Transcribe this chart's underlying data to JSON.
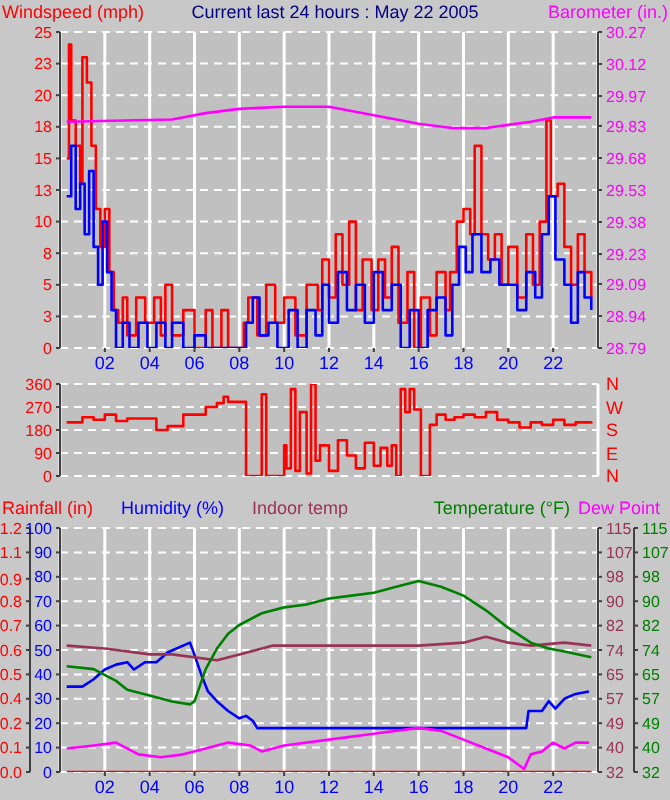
{
  "chart_data": [
    {
      "type": "line",
      "title": "Current last 24 hours : May 22 2005",
      "ylabel": "Windspeed (mph)",
      "y2label": "Barometer (in.)",
      "grid": true,
      "xlim": [
        0,
        24
      ],
      "xticks": [
        {
          "value": 2,
          "label": "02"
        },
        {
          "value": 4,
          "label": "04"
        },
        {
          "value": 6,
          "label": "06"
        },
        {
          "value": 8,
          "label": "08"
        },
        10,
        12,
        14,
        16,
        18,
        20,
        22
      ],
      "ylim": [
        0,
        25
      ],
      "yticks": [
        0,
        {
          "value": 2.5,
          "label": "3"
        },
        5,
        {
          "value": 7.5,
          "label": "8"
        },
        10,
        {
          "value": 12.5,
          "label": "13"
        },
        15,
        {
          "value": 17.5,
          "label": "18"
        },
        20,
        {
          "value": 22.5,
          "label": "23"
        },
        25
      ],
      "y2lim": [
        28.79,
        30.27
      ],
      "y2ticks": [
        28.79,
        28.94,
        29.09,
        29.23,
        29.38,
        29.53,
        29.68,
        29.83,
        29.97,
        30.12,
        30.27
      ],
      "series": [
        {
          "type": "step",
          "color": "#ff0000",
          "x": [
            0.3,
            0.4,
            0.5,
            0.7,
            0.9,
            1.0,
            1.2,
            1.4,
            1.6,
            1.8,
            2.0,
            2.2,
            2.4,
            2.6,
            2.8,
            3.0,
            3.4,
            3.8,
            4.2,
            4.5,
            4.7,
            5.0,
            5.5,
            6.0,
            6.5,
            6.8,
            7.2,
            7.5,
            8.0,
            8.2,
            8.4,
            8.8,
            9.2,
            9.6,
            10.0,
            10.5,
            11.0,
            11.5,
            11.7,
            12.0,
            12.3,
            12.6,
            12.9,
            13.2,
            13.5,
            13.9,
            14.2,
            14.5,
            14.8,
            15.1,
            15.5,
            15.8,
            16.1,
            16.5,
            16.8,
            17.2,
            17.4,
            17.7,
            18.0,
            18.3,
            18.5,
            18.8,
            19.1,
            19.4,
            19.7,
            20.0,
            20.4,
            20.8,
            21.1,
            21.4,
            21.7,
            21.9,
            22.2,
            22.5,
            22.8,
            23.1,
            23.4,
            23.7
          ],
          "values": [
            15,
            24,
            18,
            16,
            13,
            23,
            21,
            16,
            11,
            8,
            11,
            6,
            3,
            2,
            4,
            1,
            4,
            2,
            4,
            1,
            5,
            1,
            3,
            0,
            3,
            0,
            3,
            0,
            0,
            2,
            4,
            1,
            5,
            2,
            4,
            1,
            5,
            3,
            7,
            4,
            9,
            5,
            10,
            3,
            7,
            3,
            7,
            4,
            8,
            2,
            6,
            0,
            4,
            1,
            6,
            3,
            6,
            10,
            11,
            9,
            16,
            9,
            7,
            9,
            5,
            8,
            4,
            9,
            5,
            10,
            18,
            12,
            13,
            8,
            5,
            9,
            6,
            4
          ]
        },
        {
          "type": "step",
          "color": "#0000ff",
          "x": [
            0.3,
            0.5,
            0.7,
            0.9,
            1.1,
            1.3,
            1.5,
            1.7,
            1.9,
            2.1,
            2.3,
            2.5,
            2.8,
            3.1,
            3.5,
            3.9,
            4.3,
            4.7,
            5.0,
            5.5,
            6.0,
            6.5,
            8.0,
            8.3,
            8.6,
            8.9,
            9.3,
            9.7,
            10.2,
            10.6,
            11.0,
            11.4,
            11.7,
            12.0,
            12.4,
            12.8,
            13.2,
            13.6,
            14.0,
            14.4,
            14.8,
            15.2,
            15.6,
            16.0,
            16.4,
            16.8,
            17.2,
            17.5,
            17.8,
            18.1,
            18.4,
            18.8,
            19.2,
            19.6,
            20.0,
            20.4,
            20.8,
            21.2,
            21.5,
            21.8,
            22.1,
            22.5,
            22.8,
            23.1,
            23.4,
            23.7
          ],
          "values": [
            12,
            16,
            11,
            13,
            9,
            14,
            8,
            5,
            10,
            6,
            3,
            0,
            2,
            0,
            2,
            0,
            2,
            0,
            2,
            0,
            1,
            0,
            0,
            2,
            4,
            1,
            2,
            0,
            3,
            0,
            3,
            1,
            5,
            2,
            6,
            3,
            5,
            2,
            6,
            3,
            5,
            0,
            3,
            0,
            3,
            4,
            1,
            5,
            8,
            6,
            9,
            6,
            7,
            5,
            5,
            3,
            6,
            4,
            9,
            12,
            7,
            5,
            2,
            6,
            4,
            3
          ]
        },
        {
          "color": "#ff00ff",
          "axis": "y2",
          "x": [
            0.3,
            5,
            6.5,
            8,
            10,
            12,
            14,
            16,
            17.5,
            19,
            21,
            22,
            23.7
          ],
          "values": [
            29.85,
            29.86,
            29.89,
            29.91,
            29.92,
            29.92,
            29.88,
            29.84,
            29.82,
            29.82,
            29.85,
            29.87,
            29.87
          ]
        }
      ]
    },
    {
      "type": "step",
      "grid": true,
      "tick_labels": "y",
      "annotations": [
        "N",
        "E",
        "S",
        "W",
        "N"
      ],
      "xlim": [
        0,
        24
      ],
      "xticks": [
        2,
        4,
        6,
        8,
        10,
        12,
        14,
        16,
        18,
        20,
        22
      ],
      "ylim": [
        0,
        360
      ],
      "yticks": [
        0,
        90,
        180,
        270,
        360
      ],
      "series": [
        {
          "color": "#ff0000",
          "x": [
            0.3,
            1,
            1.5,
            2,
            2.5,
            3,
            4,
            4.3,
            4.8,
            5.5,
            6,
            6.5,
            7,
            7.3,
            7.5,
            8.2,
            8.3,
            8.8,
            9.0,
            9.2,
            9.5,
            10.0,
            10.1,
            10.3,
            10.5,
            10.7,
            11.0,
            11.2,
            11.4,
            11.6,
            12.0,
            12.4,
            12.8,
            13.2,
            13.6,
            14.0,
            14.3,
            14.6,
            14.8,
            15.0,
            15.2,
            15.4,
            15.6,
            15.8,
            16.1,
            16.4,
            16.5,
            16.8,
            17.2,
            17.6,
            18,
            18.5,
            19,
            19.5,
            20,
            20.5,
            21,
            21.5,
            22,
            22.5,
            23,
            23.7
          ],
          "values": [
            210,
            230,
            220,
            240,
            215,
            225,
            225,
            180,
            195,
            240,
            240,
            270,
            285,
            310,
            290,
            290,
            0,
            0,
            320,
            0,
            0,
            120,
            30,
            340,
            20,
            250,
            10,
            360,
            60,
            120,
            20,
            140,
            80,
            30,
            130,
            40,
            110,
            40,
            120,
            0,
            340,
            250,
            340,
            260,
            0,
            0,
            200,
            240,
            220,
            230,
            240,
            230,
            250,
            220,
            210,
            190,
            210,
            200,
            220,
            200,
            210,
            205
          ]
        }
      ]
    },
    {
      "type": "line",
      "grid": true,
      "legend": "top",
      "xlim": [
        0,
        24
      ],
      "xticks": [
        {
          "value": 2,
          "label": "02"
        },
        {
          "value": 4,
          "label": "04"
        },
        {
          "value": 6,
          "label": "06"
        },
        {
          "value": 8,
          "label": "08"
        },
        10,
        12,
        14,
        16,
        18,
        20,
        22
      ],
      "ylim": [
        0,
        100
      ],
      "yticks": [
        0,
        10,
        20,
        30,
        40,
        50,
        60,
        70,
        80,
        90,
        100
      ],
      "y3lim": [
        0,
        1.2
      ],
      "y3ticks": [
        {
          "value": 0,
          "label": "0.0"
        },
        {
          "value": 0.12,
          "label": "0.1"
        },
        {
          "value": 0.24,
          "label": "0.2"
        },
        {
          "value": 0.36,
          "label": "0.4"
        },
        {
          "value": 0.48,
          "label": "0.5"
        },
        {
          "value": 0.6,
          "label": "0.6"
        },
        {
          "value": 0.72,
          "label": "0.7"
        },
        {
          "value": 0.84,
          "label": "0.8"
        },
        {
          "value": 0.95,
          "label": "0.9"
        },
        {
          "value": 1.08,
          "label": "1.1"
        },
        {
          "value": 1.2,
          "label": "1.2"
        }
      ],
      "y2lim": [
        32,
        115
      ],
      "y2ticks": [
        {
          "value": 32,
          "label": "32"
        },
        {
          "value": 40.3,
          "label": "40"
        },
        {
          "value": 48.6,
          "label": "49"
        },
        {
          "value": 56.9,
          "label": "57"
        },
        {
          "value": 65.2,
          "label": "65"
        },
        {
          "value": 73.5,
          "label": "74"
        },
        {
          "value": 81.8,
          "label": "82"
        },
        {
          "value": 90.1,
          "label": "90"
        },
        {
          "value": 98.4,
          "label": "98"
        },
        {
          "value": 106.7,
          "label": "107"
        },
        {
          "value": 115,
          "label": "115"
        }
      ],
      "series": [
        {
          "name": "Rainfall (in)",
          "color": "#ff0000",
          "axis": "y3",
          "x": [
            0.3,
            23.7
          ],
          "values": [
            0,
            0
          ]
        },
        {
          "name": "Humidity (%)",
          "color": "#0000ff",
          "x": [
            0.3,
            1,
            1.5,
            2,
            2.5,
            3,
            3.3,
            3.8,
            4.3,
            4.8,
            5.3,
            5.8,
            6,
            6.3,
            6.6,
            7,
            7.5,
            8,
            8.3,
            8.6,
            8.8,
            10,
            15,
            20,
            20.8,
            20.9,
            21.5,
            21.8,
            22.1,
            22.5,
            23,
            23.6
          ],
          "values": [
            35,
            35,
            38,
            42,
            44,
            45,
            42,
            45,
            45,
            49,
            51,
            53,
            48,
            40,
            33,
            29,
            25,
            22,
            23,
            21,
            18,
            18,
            18,
            18,
            18,
            25,
            25,
            29,
            26,
            30,
            32,
            33
          ]
        },
        {
          "name": "Indoor temp",
          "color": "#993355",
          "axis": "y2",
          "x": [
            0.3,
            2,
            4,
            5,
            7,
            8,
            9.5,
            12,
            14,
            16,
            18,
            19,
            20,
            21,
            22.5,
            23.7
          ],
          "values": [
            75,
            74,
            72,
            72,
            70,
            72,
            75,
            75,
            75,
            75,
            76,
            78,
            76,
            75,
            76,
            75
          ]
        },
        {
          "name": "Temperature (°F)",
          "color": "#008000",
          "axis": "y2",
          "x": [
            0.3,
            1.5,
            2.5,
            3,
            4,
            5,
            5.8,
            6,
            6.5,
            7,
            7.5,
            8,
            9,
            10,
            11,
            12,
            13,
            14,
            15,
            16,
            17,
            18,
            19,
            20,
            21,
            21.8,
            22.5,
            23.7
          ],
          "values": [
            68,
            67,
            63,
            60,
            58,
            56,
            55,
            56,
            67,
            74,
            79,
            82,
            86,
            88,
            89,
            91,
            92,
            93,
            95,
            97,
            95,
            92,
            87,
            81,
            76,
            74,
            73,
            71
          ]
        },
        {
          "name": "Dew Point",
          "color": "#ff00ff",
          "axis": "y2",
          "x": [
            0.3,
            1.5,
            2.5,
            3.5,
            4.5,
            5.5,
            6.5,
            7.5,
            8.5,
            9,
            10,
            12,
            14,
            16,
            17,
            18,
            19,
            20,
            20.7,
            21,
            21.5,
            22,
            22.5,
            23,
            23.6
          ],
          "values": [
            40,
            41,
            42,
            38,
            37,
            38,
            40,
            42,
            41,
            39,
            41,
            43,
            45,
            47,
            46,
            43,
            40,
            37,
            33,
            38,
            39,
            42,
            40,
            42,
            42
          ]
        }
      ]
    }
  ]
}
